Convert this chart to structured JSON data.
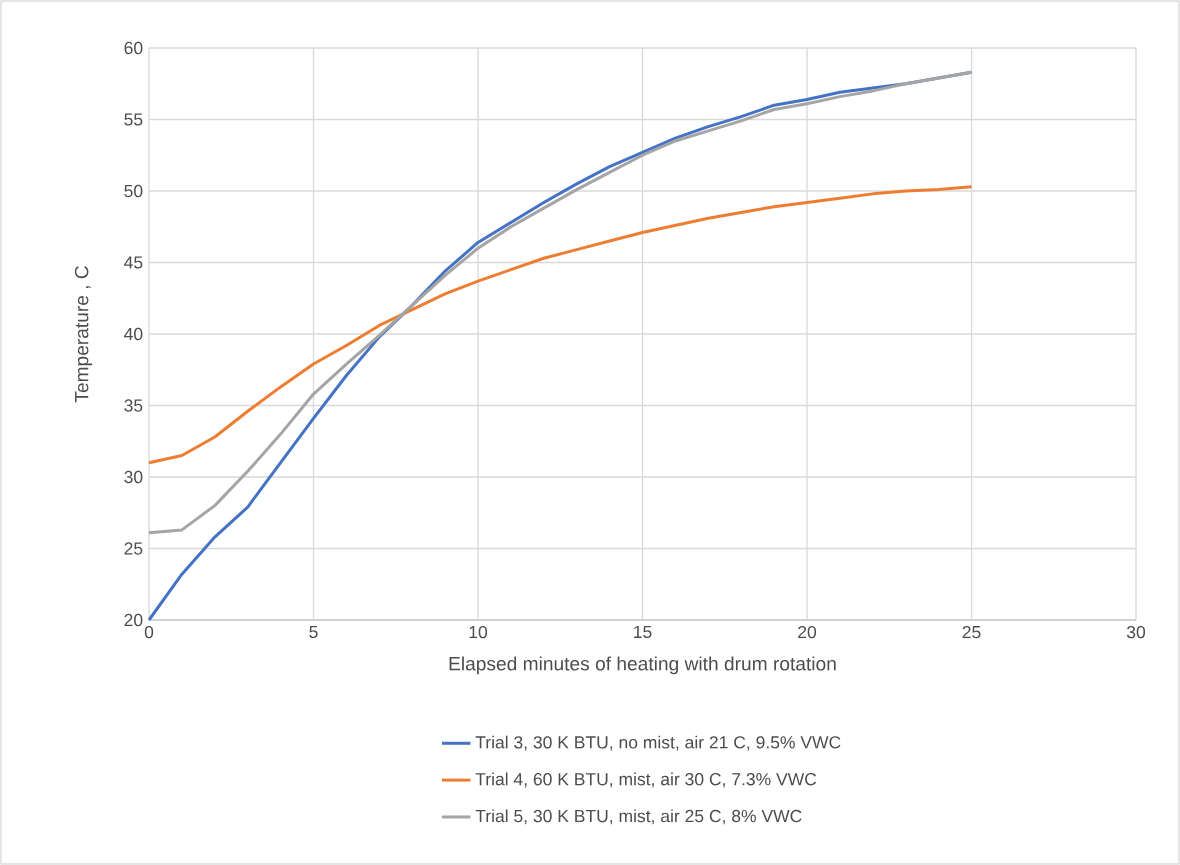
{
  "chart_data": {
    "type": "line",
    "xlabel": "Elapsed minutes of heating with drum rotation",
    "ylabel": "Temperature , C",
    "x": [
      0,
      1,
      2,
      3,
      4,
      5,
      6,
      7,
      8,
      9,
      10,
      11,
      12,
      13,
      14,
      15,
      16,
      17,
      18,
      19,
      20,
      21,
      22,
      23,
      24,
      25
    ],
    "series": [
      {
        "name": "Trial 3, 30 K BTU, no mist, air 21 C, 9.5% VWC",
        "color": "#4472c4",
        "values": [
          20.0,
          23.2,
          25.8,
          27.9,
          31.0,
          34.1,
          37.1,
          39.8,
          42.0,
          44.4,
          46.4,
          47.8,
          49.2,
          50.5,
          51.7,
          52.7,
          53.7,
          54.5,
          55.2,
          56.0,
          56.4,
          56.9,
          57.2,
          57.5,
          57.9,
          58.3
        ]
      },
      {
        "name": "Trial 4, 60 K BTU, mist, air 30 C, 7.3% VWC",
        "color": "#ed7d31",
        "values": [
          31.0,
          31.5,
          32.8,
          34.6,
          36.3,
          37.9,
          39.2,
          40.6,
          41.7,
          42.8,
          43.7,
          44.5,
          45.3,
          45.9,
          46.5,
          47.1,
          47.6,
          48.1,
          48.5,
          48.9,
          49.2,
          49.5,
          49.8,
          50.0,
          50.1,
          50.3
        ]
      },
      {
        "name": "Trial 5, 30 K BTU, mist, air 25 C, 8% VWC",
        "color": "#a5a5a5",
        "values": [
          26.1,
          26.3,
          28.0,
          30.4,
          33.0,
          35.8,
          37.9,
          39.9,
          42.0,
          44.1,
          46.0,
          47.5,
          48.8,
          50.1,
          51.3,
          52.5,
          53.5,
          54.2,
          54.9,
          55.7,
          56.1,
          56.6,
          57.0,
          57.5,
          57.9,
          58.3
        ]
      }
    ],
    "xlim": [
      0,
      30
    ],
    "xticks": [
      0,
      5,
      10,
      15,
      20,
      25,
      30
    ],
    "ylim": [
      20,
      60
    ],
    "yticks": [
      20,
      25,
      30,
      35,
      40,
      45,
      50,
      55,
      60
    ],
    "grid": true,
    "legend": "bottom",
    "marker": "none",
    "line_style": "solid"
  }
}
